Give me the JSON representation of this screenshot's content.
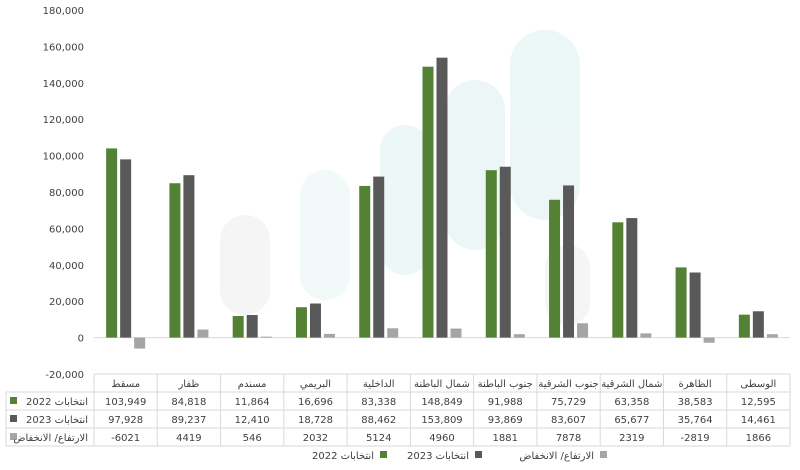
{
  "chart_data": {
    "type": "bar",
    "categories": [
      "مسقط",
      "ظفار",
      "مسندم",
      "البريمي",
      "الداخلية",
      "شمال الباطنة",
      "جنوب الباطنة",
      "جنوب الشرقية",
      "شمال الشرقية",
      "الظاهرة",
      "الوسطى"
    ],
    "series": [
      {
        "name": "انتخابات 2022",
        "color": "#548235",
        "values": [
          103949,
          84818,
          11864,
          16696,
          83338,
          148849,
          91988,
          75729,
          63358,
          38583,
          12595
        ],
        "display": [
          "103,949",
          "84,818",
          "11,864",
          "16,696",
          "83,338",
          "148,849",
          "91,988",
          "75,729",
          "63,358",
          "38,583",
          "12,595"
        ]
      },
      {
        "name": "انتخابات 2023",
        "color": "#595959",
        "values": [
          97928,
          89237,
          12410,
          18728,
          88462,
          153809,
          93869,
          83607,
          65677,
          35764,
          14461
        ],
        "display": [
          "97,928",
          "89,237",
          "12,410",
          "18,728",
          "88,462",
          "153,809",
          "93,869",
          "83,607",
          "65,677",
          "35,764",
          "14,461"
        ]
      },
      {
        "name": "الارتفاع/ الانخفاض",
        "color": "#a5a5a5",
        "values": [
          -6021,
          4419,
          546,
          2032,
          5124,
          4960,
          1881,
          7878,
          2319,
          -2819,
          1866
        ],
        "display": [
          "-6021",
          "4419",
          "546",
          "2032",
          "5124",
          "4960",
          "1881",
          "7878",
          "2319",
          "-2819",
          "1866"
        ]
      }
    ],
    "ylim": [
      -20000,
      180000
    ],
    "yticks": [
      "-20,000",
      "0",
      "20,000",
      "40,000",
      "60,000",
      "80,000",
      "100,000",
      "120,000",
      "140,000",
      "160,000",
      "180,000"
    ],
    "grid": false,
    "legend_position": "bottom",
    "data_table": true
  }
}
